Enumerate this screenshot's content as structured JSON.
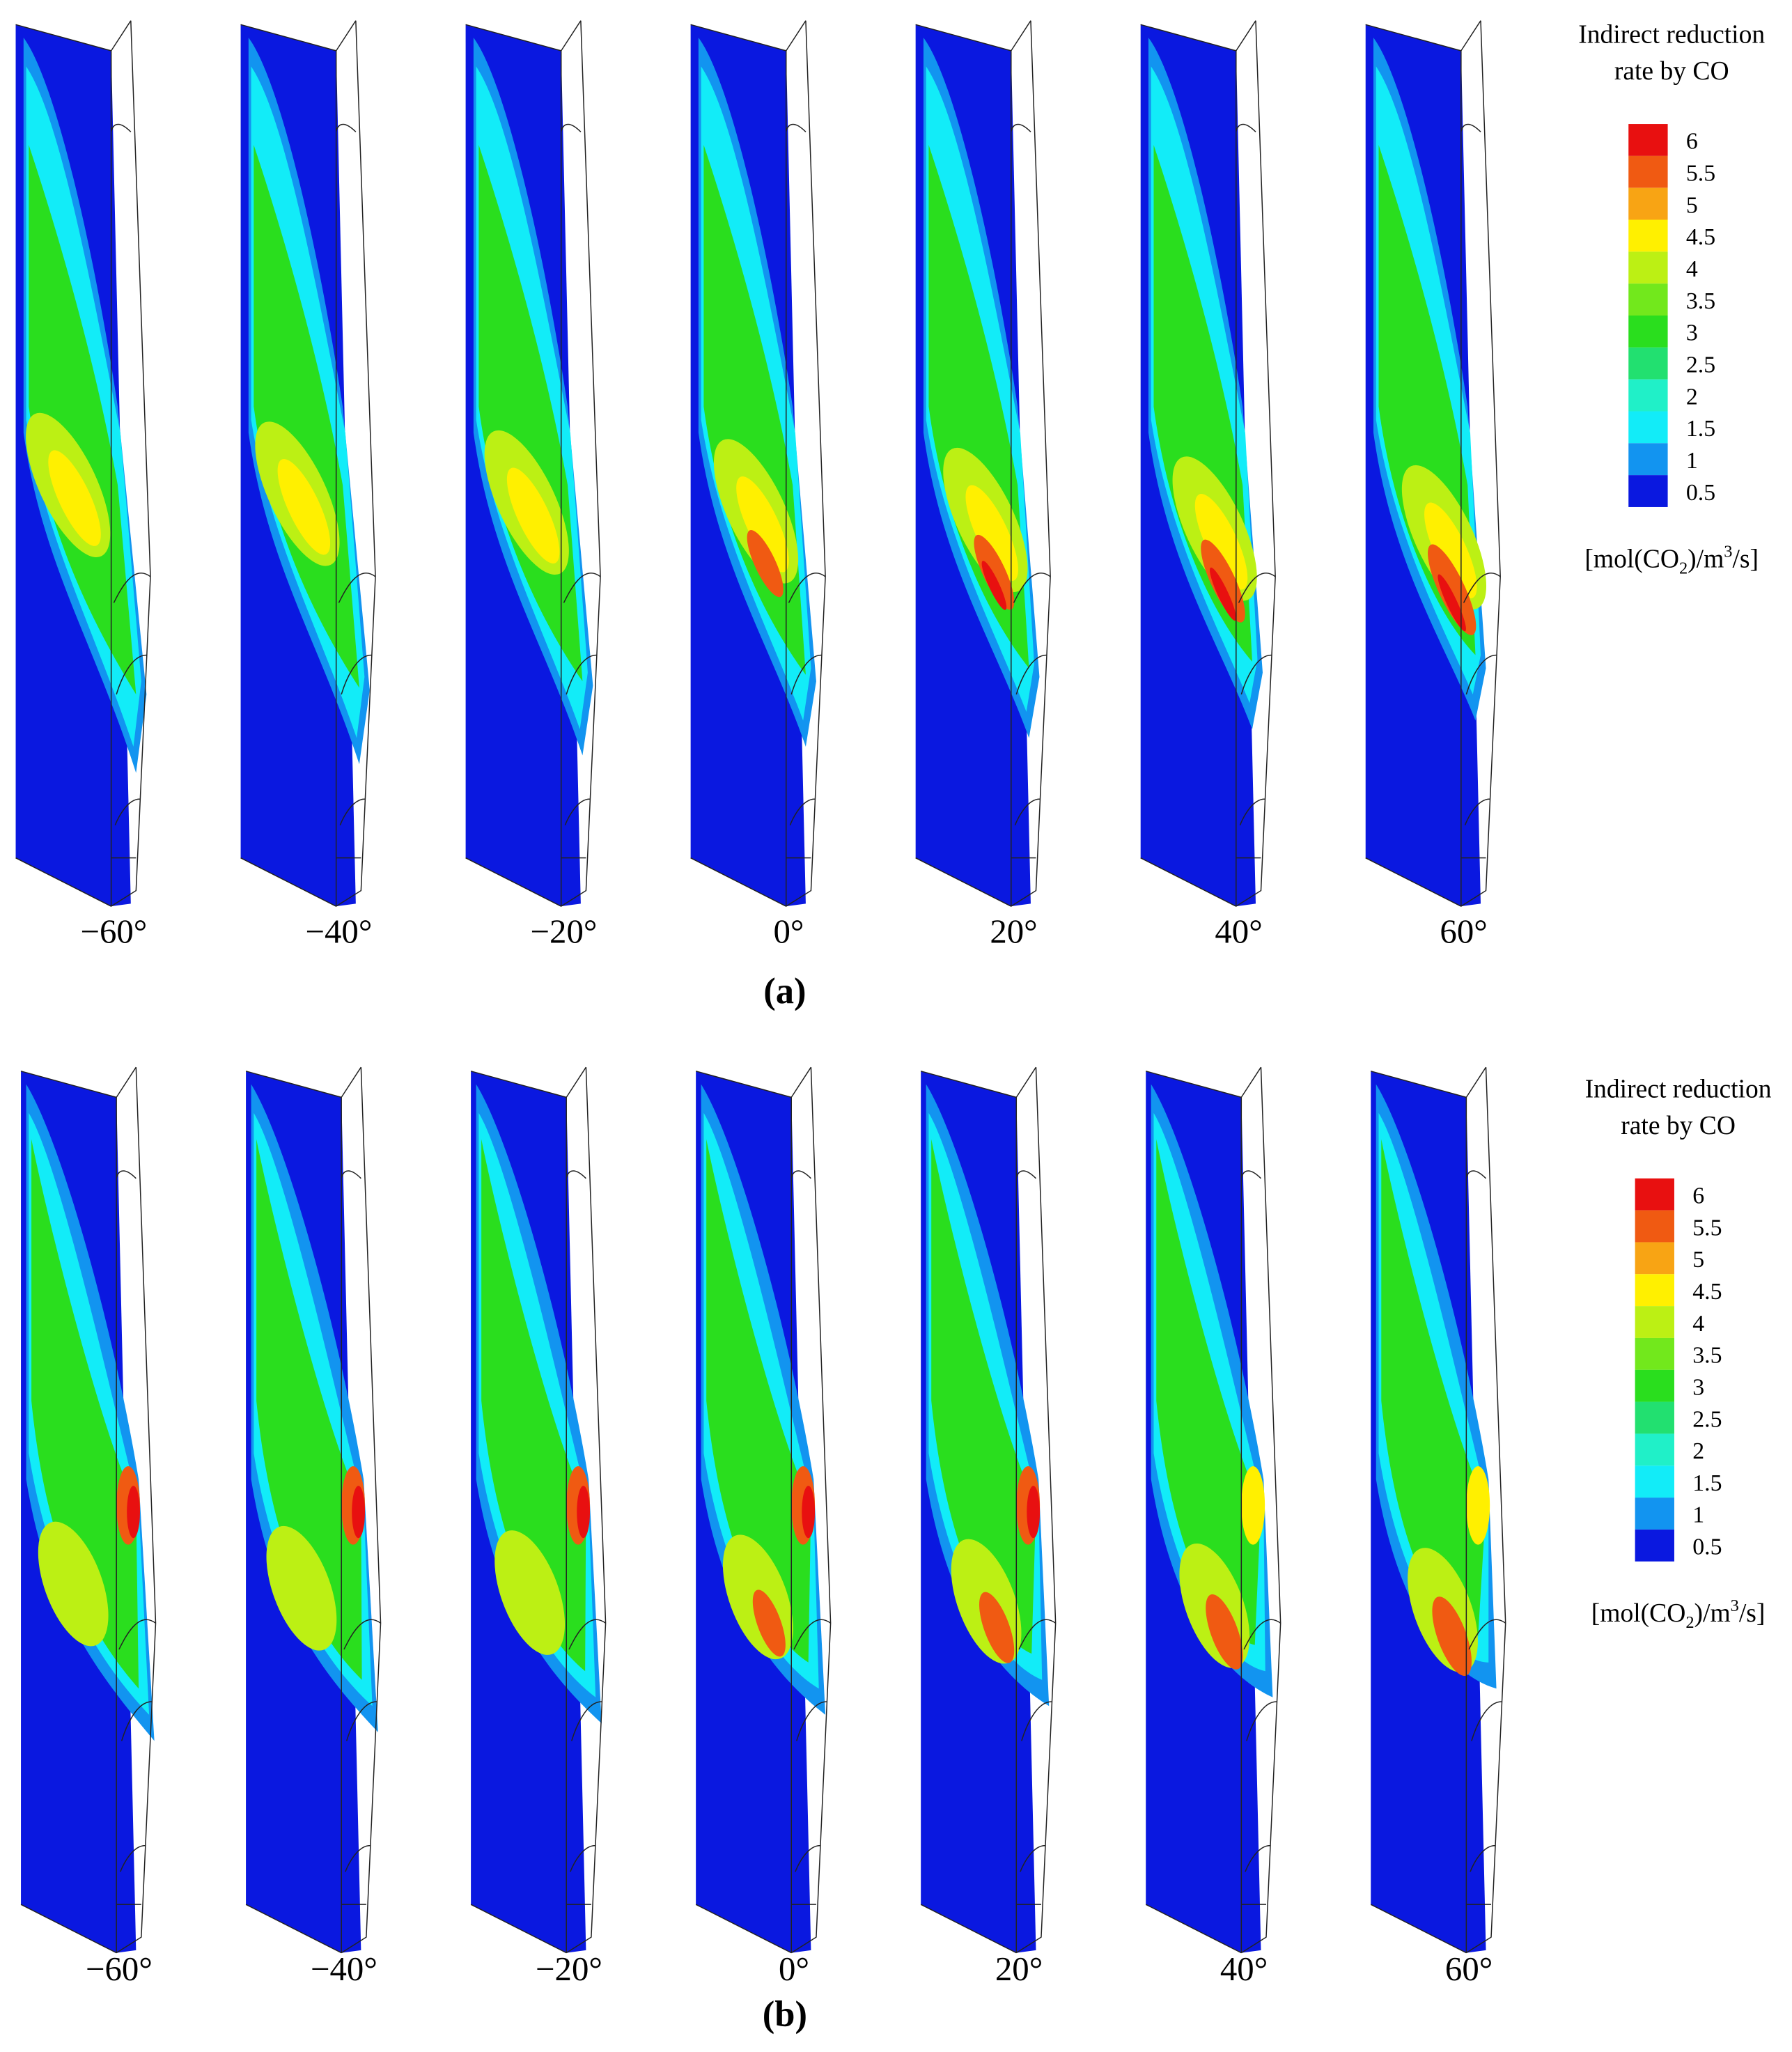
{
  "figure": {
    "panels": [
      {
        "label": "(a)",
        "angles": [
          "−60°",
          "−40°",
          "−20°",
          "0°",
          "20°",
          "40°",
          "60°"
        ],
        "legend": {
          "title_lines": [
            "Indirect reduction",
            "rate by CO"
          ],
          "levels": [
            6,
            5.5,
            5,
            4.5,
            4,
            3.5,
            3,
            2.5,
            2,
            1.5,
            1,
            0.5
          ],
          "colors": [
            "#e81010",
            "#f05a12",
            "#f8a414",
            "#fff000",
            "#bcf014",
            "#72e81c",
            "#2ade1e",
            "#22e070",
            "#20f0c8",
            "#12ecf8",
            "#1294f0",
            "#0a18e0"
          ],
          "unit_parts": [
            "[mol(CO",
            "2",
            ")/m",
            "3",
            "/s]"
          ]
        }
      },
      {
        "label": "(b)",
        "angles": [
          "−60°",
          "−40°",
          "−20°",
          "0°",
          "20°",
          "40°",
          "60°"
        ],
        "legend": {
          "title_lines": [
            "Indirect reduction",
            "rate by CO"
          ],
          "levels": [
            6,
            5.5,
            5,
            4.5,
            4,
            3.5,
            3,
            2.5,
            2,
            1.5,
            1,
            0.5
          ],
          "colors": [
            "#e81010",
            "#f05a12",
            "#f8a414",
            "#fff000",
            "#bcf014",
            "#72e81c",
            "#2ade1e",
            "#22e070",
            "#20f0c8",
            "#12ecf8",
            "#1294f0",
            "#0a18e0"
          ],
          "unit_parts": [
            "[mol(CO",
            "2",
            ")/m",
            "3",
            "/s]"
          ]
        }
      }
    ]
  }
}
